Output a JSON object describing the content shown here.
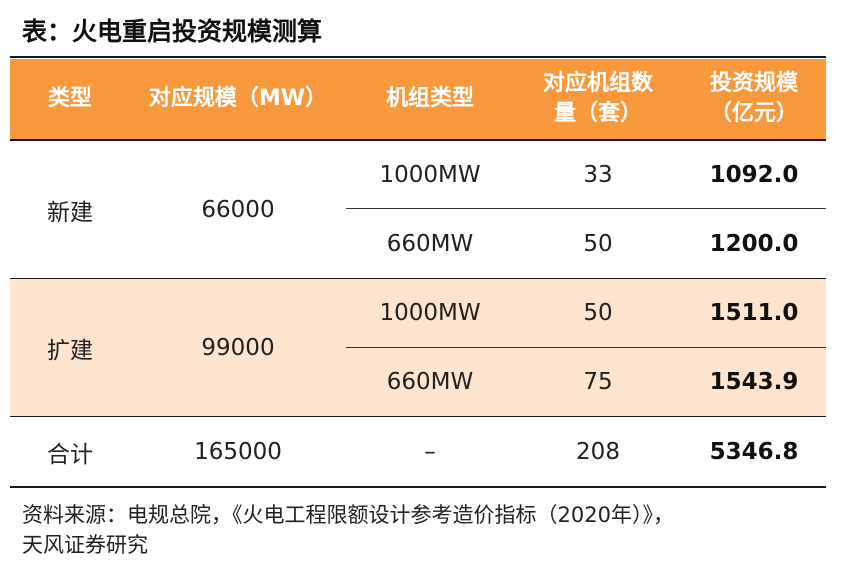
{
  "title": "表：火电重启投资规模测算",
  "headers": [
    [
      "类型"
    ],
    [
      "对应规模（MW）"
    ],
    [
      "机组类型"
    ],
    [
      "对应机组数",
      "量（套）"
    ],
    [
      "投资规模",
      "（亿元）"
    ]
  ],
  "groups": [
    {
      "type": "新建",
      "scale": "66000",
      "rows": [
        {
          "unit": "1000MW",
          "count": "33",
          "invest": "1092.0"
        },
        {
          "unit": "660MW",
          "count": "50",
          "invest": "1200.0"
        }
      ]
    },
    {
      "type": "扩建",
      "scale": "99000",
      "rows": [
        {
          "unit": "1000MW",
          "count": "50",
          "invest": "1511.0"
        },
        {
          "unit": "660MW",
          "count": "75",
          "invest": "1543.9"
        }
      ]
    }
  ],
  "total": {
    "type": "合计",
    "scale": "165000",
    "unit": "–",
    "count": "208",
    "invest": "5346.8"
  },
  "source": [
    "资料来源：电规总院，《火电工程限额设计参考造价指标（2020年）》，",
    "天风证券研究"
  ],
  "colors": {
    "header_bg": "#f7983d",
    "band_bg": "#fde4cf"
  }
}
